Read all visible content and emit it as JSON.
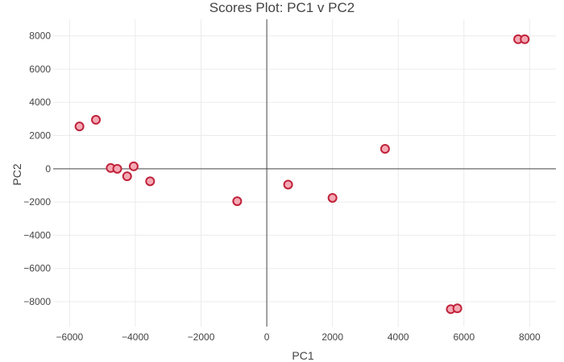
{
  "chart_data": {
    "type": "scatter",
    "title": "Scores Plot: PC1 v PC2",
    "xlabel": "PC1",
    "ylabel": "PC2",
    "xlim": [
      -6500,
      8800
    ],
    "ylim": [
      -9500,
      9000
    ],
    "xticks": [
      -6000,
      -4000,
      -2000,
      0,
      2000,
      4000,
      6000,
      8000
    ],
    "yticks": [
      -8000,
      -6000,
      -4000,
      -2000,
      0,
      2000,
      4000,
      6000,
      8000
    ],
    "grid": true,
    "zero_lines": true,
    "marker": {
      "fill": "#f4a9b4",
      "stroke": "#c0223a"
    },
    "series": [
      {
        "points": [
          {
            "x": -5700,
            "y": 2550
          },
          {
            "x": -5200,
            "y": 2950
          },
          {
            "x": -4750,
            "y": 50
          },
          {
            "x": -4550,
            "y": 0
          },
          {
            "x": -4050,
            "y": 150
          },
          {
            "x": -4250,
            "y": -450
          },
          {
            "x": -3550,
            "y": -750
          },
          {
            "x": -900,
            "y": -1950
          },
          {
            "x": 650,
            "y": -950
          },
          {
            "x": 2000,
            "y": -1750
          },
          {
            "x": 3600,
            "y": 1200
          },
          {
            "x": 5600,
            "y": -8450
          },
          {
            "x": 5800,
            "y": -8400
          },
          {
            "x": 7650,
            "y": 7800
          },
          {
            "x": 7850,
            "y": 7800
          }
        ]
      }
    ]
  }
}
